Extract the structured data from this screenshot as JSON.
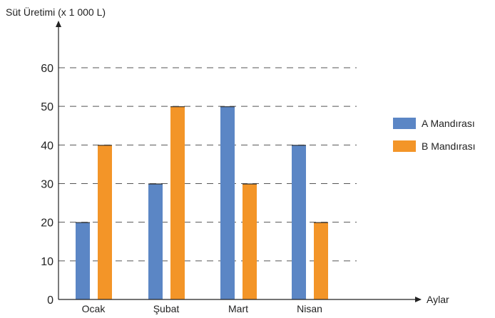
{
  "chart_data": {
    "type": "bar",
    "title": "",
    "ylabel": "Süt Üretimi (x 1 000 L)",
    "xlabel": "Aylar",
    "categories": [
      "Ocak",
      "Şubat",
      "Mart",
      "Nisan"
    ],
    "series": [
      {
        "name": "A Mandırası",
        "color": "#5b86c5",
        "values": [
          20,
          30,
          50,
          40
        ]
      },
      {
        "name": "B Mandırası",
        "color": "#f39528",
        "values": [
          40,
          50,
          30,
          20
        ]
      }
    ],
    "ylim": [
      0,
      60
    ],
    "yticks": [
      "0",
      "10",
      "20",
      "30",
      "40",
      "50",
      "60"
    ],
    "grid": "dashed-horizontal",
    "legend_position": "right"
  }
}
